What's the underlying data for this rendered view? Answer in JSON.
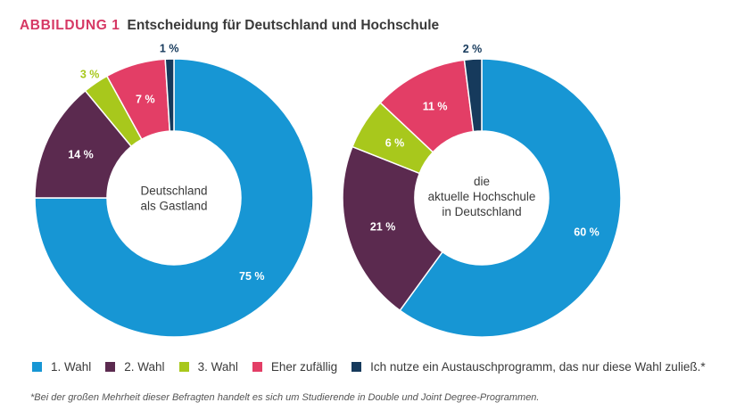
{
  "header": {
    "figure_label": "ABBILDUNG 1",
    "title": "Entscheidung für Deutschland und Hochschule"
  },
  "colors": {
    "wahl1": "#1796d4",
    "wahl2": "#5b2a4f",
    "wahl3": "#a8c81c",
    "zufaellig": "#e33e66",
    "austausch": "#163a5c"
  },
  "legend": {
    "items": [
      {
        "label": "1. Wahl",
        "color": "#1796d4"
      },
      {
        "label": "2. Wahl",
        "color": "#5b2a4f"
      },
      {
        "label": "3. Wahl",
        "color": "#a8c81c"
      },
      {
        "label": "Eher zufällig",
        "color": "#e33e66"
      },
      {
        "label": "Ich nutze ein Austauschprogramm, das nur diese Wahl zuließ.*",
        "color": "#163a5c"
      }
    ]
  },
  "footnote": "*Bei der großen Mehrheit dieser Befragten handelt es sich um Studierende in Double und Joint Degree-Programmen.",
  "chart_data": [
    {
      "type": "pie",
      "variant": "donut",
      "title": "Deutschland als Gastland",
      "center_lines": [
        "Deutschland",
        "als Gastland"
      ],
      "categories": [
        "1. Wahl",
        "2. Wahl",
        "3. Wahl",
        "Eher zufällig",
        "Ich nutze ein Austauschprogramm, das nur diese Wahl zuließ.*"
      ],
      "values": [
        75,
        14,
        3,
        7,
        1
      ],
      "labels": [
        "75 %",
        "14 %",
        "3 %",
        "7 %",
        "1 %"
      ],
      "unit": "%"
    },
    {
      "type": "pie",
      "variant": "donut",
      "title": "die aktuelle Hochschule in Deutschland",
      "center_lines": [
        "die",
        "aktuelle Hochschule",
        "in Deutschland"
      ],
      "categories": [
        "1. Wahl",
        "2. Wahl",
        "3. Wahl",
        "Eher zufällig",
        "Ich nutze ein Austauschprogramm, das nur diese Wahl zuließ.*"
      ],
      "values": [
        60,
        21,
        6,
        11,
        2
      ],
      "labels": [
        "60 %",
        "21 %",
        "6 %",
        "11 %",
        "2 %"
      ],
      "unit": "%"
    }
  ]
}
